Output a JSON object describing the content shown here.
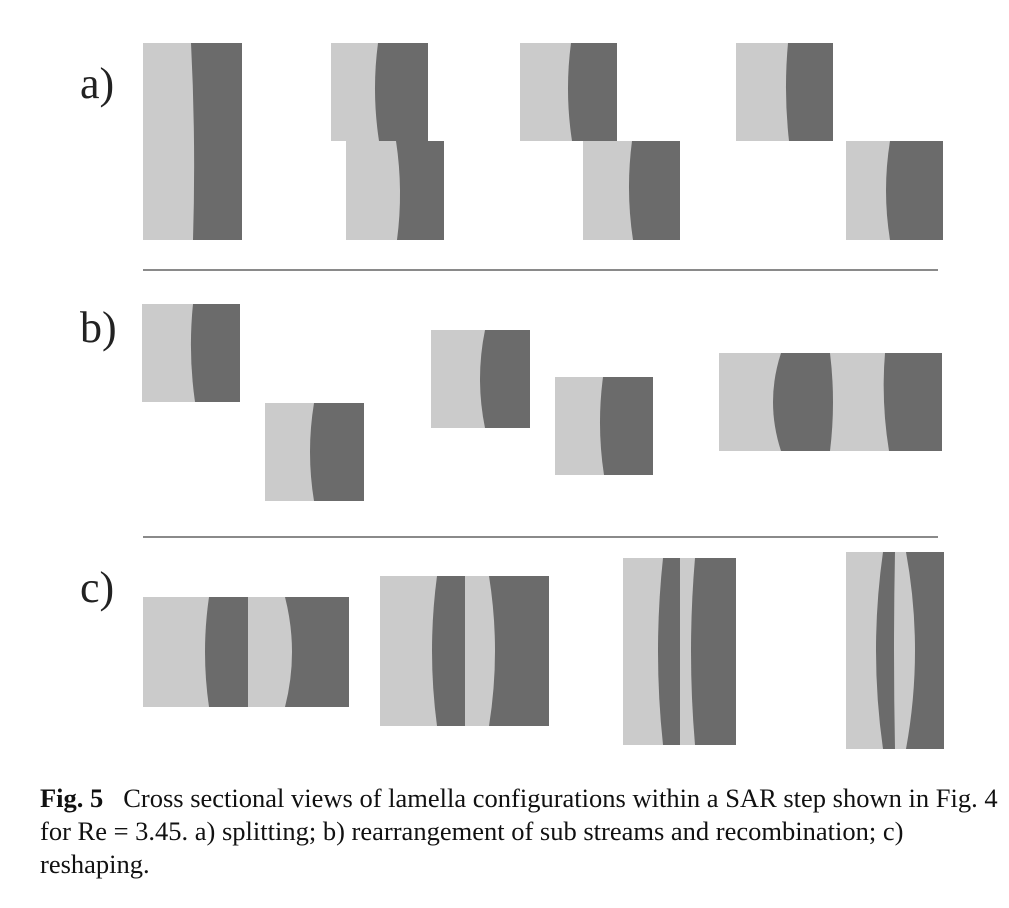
{
  "figure": {
    "panels": [
      {
        "label": "a)"
      },
      {
        "label": "b)"
      },
      {
        "label": "c)"
      }
    ],
    "colors": {
      "light_stream": "#cbcbcb",
      "dark_stream": "#6b6b6b",
      "separator": "#8a8a8a"
    }
  },
  "caption": {
    "label": "Fig. 5",
    "text": "Cross sectional views of lamella configurations within a SAR step shown in Fig. 4 for Re = 3.45. a) splitting; b) rearrangement of sub streams and recombination; c) reshaping."
  }
}
